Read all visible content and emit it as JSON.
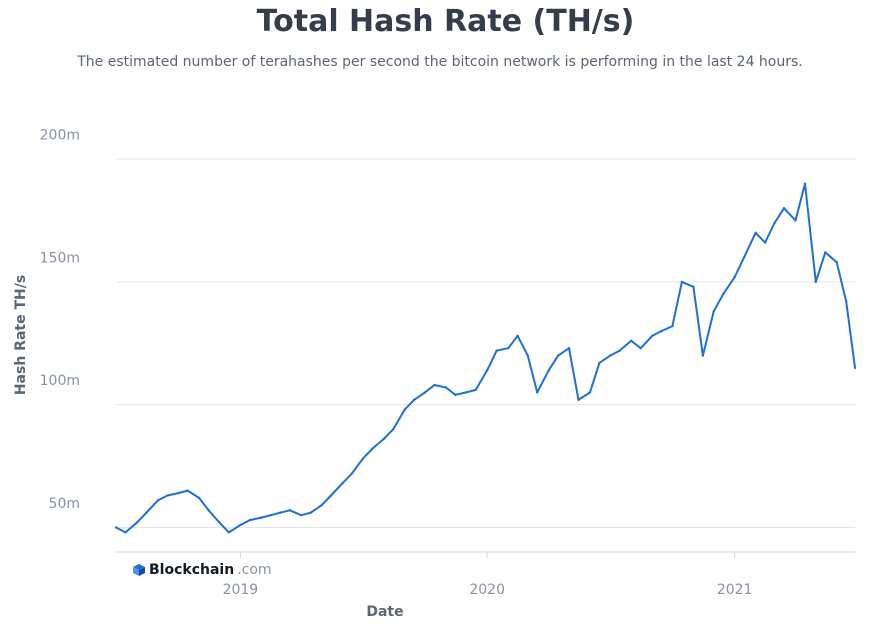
{
  "chart_data": {
    "type": "line",
    "title": "Total Hash Rate (TH/s)",
    "subtitle": "The estimated number of terahashes per second the bitcoin network is performing in the last 24 hours.",
    "xlabel": "Date",
    "ylabel": "Hash Rate TH/s",
    "y_ticks": [
      "50m",
      "100m",
      "150m",
      "200m"
    ],
    "y_tick_values": [
      50,
      100,
      150,
      200
    ],
    "x_ticks": [
      "2019",
      "2020",
      "2021"
    ],
    "x_tick_values": [
      "2019-01-01",
      "2020-01-01",
      "2021-01-01"
    ],
    "xlim": [
      "2018-07-01",
      "2021-06-28"
    ],
    "ylim": [
      30,
      210
    ],
    "grid": true,
    "legend": "none",
    "series": [
      {
        "color": "#1f6fd6",
        "x": [
          "2018-07-01",
          "2018-07-15",
          "2018-08-01",
          "2018-08-15",
          "2018-09-01",
          "2018-09-15",
          "2018-10-01",
          "2018-10-15",
          "2018-11-01",
          "2018-11-15",
          "2018-12-01",
          "2018-12-15",
          "2019-01-01",
          "2019-01-15",
          "2019-02-01",
          "2019-02-15",
          "2019-03-01",
          "2019-03-15",
          "2019-04-01",
          "2019-04-15",
          "2019-05-01",
          "2019-05-15",
          "2019-06-01",
          "2019-06-15",
          "2019-07-01",
          "2019-07-15",
          "2019-08-01",
          "2019-08-15",
          "2019-09-01",
          "2019-09-15",
          "2019-10-01",
          "2019-10-15",
          "2019-11-01",
          "2019-11-15",
          "2019-12-01",
          "2019-12-15",
          "2020-01-01",
          "2020-01-15",
          "2020-02-01",
          "2020-02-15",
          "2020-03-01",
          "2020-03-15",
          "2020-04-01",
          "2020-04-15",
          "2020-05-01",
          "2020-05-15",
          "2020-06-01",
          "2020-06-15",
          "2020-07-01",
          "2020-07-15",
          "2020-08-01",
          "2020-08-15",
          "2020-09-01",
          "2020-09-15",
          "2020-10-01",
          "2020-10-15",
          "2020-11-01",
          "2020-11-15",
          "2020-12-01",
          "2020-12-15",
          "2021-01-01",
          "2021-01-15",
          "2021-02-01",
          "2021-02-15",
          "2021-03-01",
          "2021-03-15",
          "2021-04-01",
          "2021-04-15",
          "2021-05-01",
          "2021-05-15",
          "2021-06-01",
          "2021-06-15",
          "2021-06-28"
        ],
        "values": [
          40,
          38,
          42,
          46,
          51,
          53,
          54,
          55,
          52,
          47,
          42,
          38,
          41,
          43,
          44,
          45,
          46,
          47,
          45,
          46,
          49,
          53,
          58,
          62,
          68,
          72,
          76,
          80,
          88,
          92,
          95,
          98,
          97,
          94,
          95,
          96,
          104,
          112,
          113,
          118,
          110,
          95,
          104,
          110,
          113,
          92,
          95,
          107,
          110,
          112,
          116,
          113,
          118,
          120,
          122,
          140,
          138,
          110,
          128,
          135,
          142,
          150,
          160,
          156,
          164,
          170,
          165,
          180,
          140,
          152,
          148,
          132,
          105
        ]
      }
    ]
  },
  "watermark": {
    "brand": "Blockchain",
    "suffix": ".com",
    "icon": "blockchain-logo-icon"
  }
}
